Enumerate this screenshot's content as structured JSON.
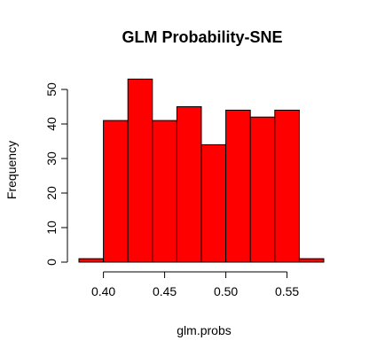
{
  "chart_data": {
    "type": "bar",
    "title": "GLM Probability-SNE",
    "xlabel": "glm.probs",
    "ylabel": "Frequency",
    "bin_edges": [
      0.38,
      0.4,
      0.42,
      0.44,
      0.46,
      0.48,
      0.5,
      0.52,
      0.54,
      0.56,
      0.58
    ],
    "values": [
      1,
      41,
      53,
      41,
      45,
      34,
      44,
      42,
      44,
      1
    ],
    "xlim": [
      0.38,
      0.58
    ],
    "ylim": [
      0,
      55
    ],
    "x_ticks": [
      0.4,
      0.45,
      0.5,
      0.55
    ],
    "x_tick_labels": [
      "0.40",
      "0.45",
      "0.50",
      "0.55"
    ],
    "y_ticks": [
      0,
      10,
      20,
      30,
      40,
      50
    ],
    "y_tick_labels": [
      "0",
      "10",
      "20",
      "30",
      "40",
      "50"
    ],
    "bar_color": "#ff0000",
    "grid": false,
    "legend": "none"
  }
}
